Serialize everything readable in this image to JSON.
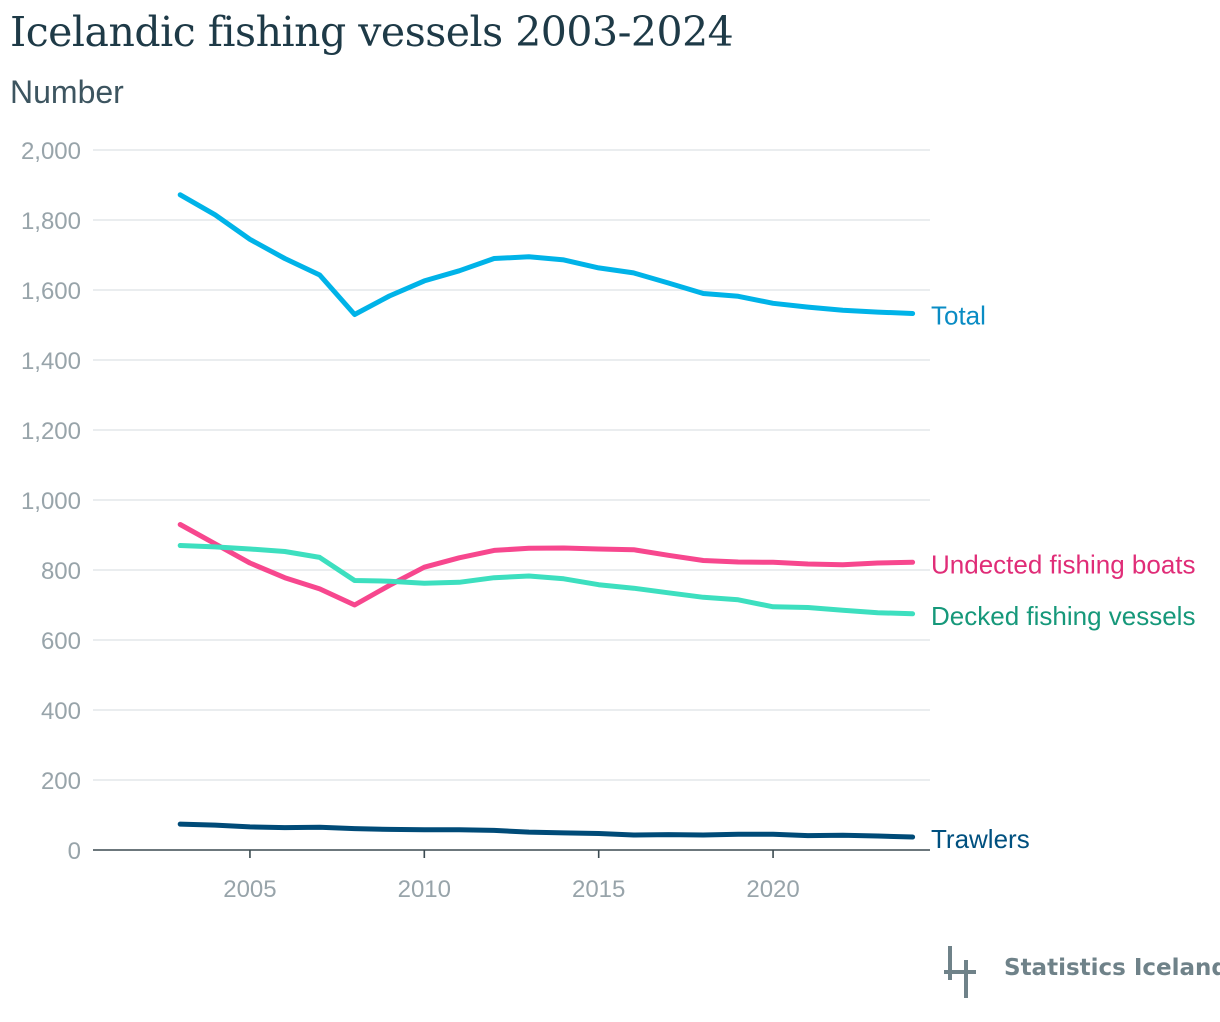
{
  "header": {
    "title": "Icelandic fishing vessels 2003-2024",
    "subtitle": "Number"
  },
  "footer": {
    "logo_text": "Statistics Iceland",
    "logo_color": "#6f8289"
  },
  "chart_data": {
    "type": "line",
    "title": "Icelandic fishing vessels 2003-2024",
    "subtitle": "Number",
    "xlabel": "",
    "ylabel": "",
    "x": [
      2003,
      2004,
      2005,
      2006,
      2007,
      2008,
      2009,
      2010,
      2011,
      2012,
      2013,
      2014,
      2015,
      2016,
      2017,
      2018,
      2019,
      2020,
      2021,
      2022,
      2023,
      2024
    ],
    "xlim": [
      2000.5,
      2024.5
    ],
    "ylim": [
      0,
      2000
    ],
    "x_ticks": [
      2005,
      2010,
      2015,
      2020
    ],
    "y_ticks": [
      0,
      200,
      400,
      600,
      800,
      1000,
      1200,
      1400,
      1600,
      1800,
      2000
    ],
    "y_tick_labels": [
      "0",
      "200",
      "400",
      "600",
      "800",
      "1,000",
      "1,200",
      "1,400",
      "1,600",
      "1,800",
      "2,000"
    ],
    "grid": "horizontal",
    "legend": "direct labels at right end of lines",
    "series": [
      {
        "name": "Total",
        "color": "#00b3e8",
        "label_color": "#0a8cc4",
        "values": [
          1872,
          1815,
          1745,
          1690,
          1643,
          1530,
          1583,
          1626,
          1655,
          1690,
          1695,
          1686,
          1663,
          1649,
          1620,
          1590,
          1582,
          1562,
          1551,
          1542,
          1537,
          1533
        ]
      },
      {
        "name": "Undected fishing boats",
        "color": "#f7478e",
        "label_color": "#e02d78",
        "values": [
          930,
          875,
          820,
          778,
          746,
          700,
          756,
          808,
          835,
          856,
          862,
          863,
          860,
          858,
          842,
          827,
          823,
          822,
          817,
          815,
          820,
          822
        ]
      },
      {
        "name": "Decked fishing vessels",
        "color": "#3ddfbf",
        "label_color": "#16987a",
        "values": [
          870,
          866,
          860,
          853,
          836,
          770,
          768,
          762,
          765,
          778,
          783,
          775,
          758,
          748,
          735,
          722,
          715,
          695,
          693,
          685,
          678,
          675
        ]
      },
      {
        "name": "Trawlers",
        "color": "#004b78",
        "label_color": "#00507f",
        "values": [
          74,
          71,
          66,
          64,
          65,
          61,
          59,
          58,
          58,
          56,
          51,
          49,
          47,
          43,
          44,
          43,
          45,
          45,
          41,
          42,
          40,
          37
        ]
      }
    ]
  }
}
